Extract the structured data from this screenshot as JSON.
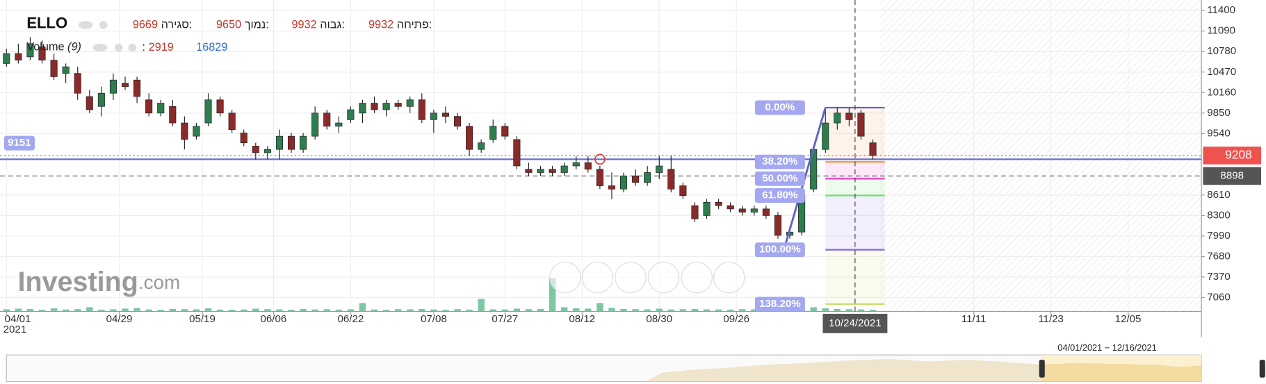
{
  "chart_data": {
    "type": "candlestick",
    "symbol": "ELLO",
    "legend_items": [
      {
        "label": "פתיחה:",
        "value": 9932
      },
      {
        "label": "גבוה:",
        "value": 9932
      },
      {
        "label": "נמוך:",
        "value": 9650
      },
      {
        "label": "סגירה:",
        "value": 9669
      }
    ],
    "volume_label": "Volume",
    "volume_period": "(9)",
    "volume_separator": ":",
    "volume_value": 2919,
    "volume_ma": 16829,
    "watermark": "Investing",
    "watermark_suffix": ".com",
    "xlim": [
      0,
      200
    ],
    "xticks": [
      {
        "value": 0,
        "label": "04/01"
      },
      {
        "value": 19,
        "label": "04/29"
      },
      {
        "value": 33,
        "label": "05/19"
      },
      {
        "value": 45,
        "label": "06/06"
      },
      {
        "value": 58,
        "label": "06/22"
      },
      {
        "value": 72,
        "label": "07/08"
      },
      {
        "value": 84,
        "label": "07/27"
      },
      {
        "value": 97,
        "label": "08/12"
      },
      {
        "value": 110,
        "label": "08/30"
      },
      {
        "value": 123,
        "label": "09/26"
      },
      {
        "value": 163,
        "label": "11/11"
      },
      {
        "value": 176,
        "label": "11/23"
      },
      {
        "value": 189,
        "label": "12/05"
      }
    ],
    "x_year": "2021",
    "ylim": [
      6850,
      11560
    ],
    "yticks": [
      11400,
      11090,
      10780,
      10470,
      10160,
      9850,
      9540,
      8610,
      8300,
      7990,
      7680,
      7370,
      7060
    ],
    "grid": true,
    "up_color": "#2e7d4f",
    "down_color": "#8b2a2a",
    "x": [
      0,
      2,
      4,
      6,
      8,
      10,
      12,
      14,
      16,
      18,
      20,
      22,
      24,
      26,
      28,
      30,
      32,
      34,
      36,
      38,
      40,
      42,
      44,
      46,
      48,
      50,
      52,
      54,
      56,
      58,
      60,
      62,
      64,
      66,
      68,
      70,
      72,
      74,
      76,
      78,
      80,
      82,
      84,
      86,
      88,
      90,
      92,
      94,
      96,
      98,
      100,
      102,
      104,
      106,
      108,
      110,
      112,
      114,
      116,
      118,
      120,
      122,
      124,
      126,
      128,
      130,
      132,
      134,
      136,
      138,
      140,
      142,
      144,
      146
    ],
    "ohlc": [
      [
        10600,
        10820,
        10550,
        10750
      ],
      [
        10750,
        10900,
        10600,
        10650
      ],
      [
        10700,
        11000,
        10650,
        10900
      ],
      [
        10850,
        10950,
        10600,
        10650
      ],
      [
        10650,
        10750,
        10350,
        10400
      ],
      [
        10450,
        10600,
        10300,
        10550
      ],
      [
        10450,
        10550,
        10050,
        10150
      ],
      [
        10100,
        10200,
        9850,
        9900
      ],
      [
        9950,
        10250,
        9800,
        10150
      ],
      [
        10150,
        10450,
        10050,
        10350
      ],
      [
        10300,
        10400,
        10200,
        10250
      ],
      [
        10350,
        10400,
        10000,
        10100
      ],
      [
        10050,
        10150,
        9800,
        9850
      ],
      [
        9850,
        10050,
        9800,
        10000
      ],
      [
        9950,
        10050,
        9650,
        9700
      ],
      [
        9700,
        9800,
        9300,
        9450
      ],
      [
        9500,
        9700,
        9450,
        9650
      ],
      [
        9700,
        10150,
        9650,
        10050
      ],
      [
        10050,
        10100,
        9800,
        9850
      ],
      [
        9850,
        9900,
        9550,
        9600
      ],
      [
        9550,
        9600,
        9350,
        9400
      ],
      [
        9350,
        9400,
        9150,
        9250
      ],
      [
        9250,
        9350,
        9150,
        9300
      ],
      [
        9300,
        9600,
        9150,
        9500
      ],
      [
        9500,
        9550,
        9250,
        9300
      ],
      [
        9300,
        9550,
        9250,
        9500
      ],
      [
        9500,
        9950,
        9450,
        9850
      ],
      [
        9850,
        9900,
        9600,
        9650
      ],
      [
        9650,
        9800,
        9550,
        9700
      ],
      [
        9750,
        9950,
        9700,
        9900
      ],
      [
        9850,
        10050,
        9700,
        10000
      ],
      [
        10000,
        10100,
        9850,
        9900
      ],
      [
        9900,
        10050,
        9800,
        10000
      ],
      [
        10000,
        10050,
        9900,
        9950
      ],
      [
        9950,
        10100,
        9850,
        10050
      ],
      [
        10050,
        10150,
        9700,
        9750
      ],
      [
        9750,
        9900,
        9550,
        9850
      ],
      [
        9850,
        9950,
        9700,
        9800
      ],
      [
        9800,
        9850,
        9600,
        9650
      ],
      [
        9650,
        9700,
        9200,
        9300
      ],
      [
        9300,
        9450,
        9250,
        9400
      ],
      [
        9450,
        9750,
        9400,
        9650
      ],
      [
        9650,
        9700,
        9450,
        9500
      ],
      [
        9450,
        9500,
        9000,
        9050
      ],
      [
        9000,
        9100,
        8900,
        8950
      ],
      [
        8950,
        9050,
        8900,
        9000
      ],
      [
        9000,
        9050,
        8900,
        8950
      ],
      [
        8950,
        9100,
        8900,
        9050
      ],
      [
        9050,
        9200,
        9000,
        9100
      ],
      [
        9100,
        9200,
        8950,
        9000
      ],
      [
        9000,
        9050,
        8700,
        8750
      ],
      [
        8750,
        8950,
        8550,
        8700
      ],
      [
        8700,
        8950,
        8650,
        8900
      ],
      [
        8900,
        9000,
        8750,
        8800
      ],
      [
        8800,
        9050,
        8750,
        8950
      ],
      [
        8950,
        9200,
        8850,
        9050
      ],
      [
        9000,
        9200,
        8650,
        8700
      ],
      [
        8750,
        8800,
        8550,
        8600
      ],
      [
        8450,
        8500,
        8200,
        8250
      ],
      [
        8300,
        8550,
        8250,
        8500
      ],
      [
        8500,
        8550,
        8400,
        8450
      ],
      [
        8450,
        8500,
        8350,
        8400
      ],
      [
        8400,
        8450,
        8300,
        8350
      ],
      [
        8350,
        8450,
        8300,
        8400
      ],
      [
        8400,
        8450,
        8250,
        8300
      ],
      [
        8300,
        8350,
        7950,
        8000
      ],
      [
        8000,
        8100,
        7950,
        8050
      ],
      [
        8050,
        8700,
        8000,
        8600
      ],
      [
        8700,
        9350,
        8650,
        9300
      ],
      [
        9300,
        9900,
        9250,
        9700
      ],
      [
        9700,
        9932,
        9600,
        9850
      ],
      [
        9850,
        9932,
        9650,
        9750
      ],
      [
        9850,
        9900,
        9450,
        9500
      ],
      [
        9400,
        9450,
        9150,
        9208
      ]
    ],
    "volume": [
      15000,
      20000,
      18000,
      12000,
      22000,
      14000,
      16000,
      30000,
      12000,
      15000,
      20000,
      25000,
      14000,
      12000,
      18000,
      16000,
      15000,
      22000,
      13000,
      12000,
      14000,
      20000,
      16000,
      15000,
      12000,
      18000,
      14000,
      16000,
      13000,
      15000,
      60000,
      14000,
      12000,
      16000,
      15000,
      18000,
      14000,
      12000,
      16000,
      13000,
      90000,
      15000,
      14000,
      20000,
      16000,
      18000,
      240000,
      30000,
      22000,
      20000,
      60000,
      25000,
      18000,
      16000,
      15000,
      20000,
      14000,
      16000,
      18000,
      15000,
      14000,
      13000,
      16000,
      15000,
      14000,
      18000,
      20000,
      25000,
      30000,
      22000,
      18000,
      16000,
      14000,
      12000
    ],
    "volume_ylim": [
      0,
      500000
    ],
    "volume_color": "#7cc7a4",
    "fib": {
      "high": 9932,
      "low": 7782,
      "x": [
        138,
        148
      ],
      "levels": [
        {
          "value": 0,
          "label": "0.00%",
          "color": "#5b63c7"
        },
        {
          "value": 38.2,
          "label": "38.20%",
          "color": "#f0a050"
        },
        {
          "value": 50,
          "label": "50.00%",
          "color": "#e040c8"
        },
        {
          "value": 61.8,
          "label": "61.80%",
          "color": "#6fe06f"
        },
        {
          "value": 100,
          "label": "100.00%",
          "color": "#9070e0"
        },
        {
          "value": 138.2,
          "label": "138.20%",
          "color": "#c8e070"
        }
      ]
    },
    "trendline": {
      "x": [
        131,
        138
      ],
      "y": [
        7782,
        9932
      ],
      "color": "#5b63c7"
    },
    "hline": {
      "value": 9151,
      "color": "#6a6fd1",
      "marker_x": 100
    },
    "last_price": {
      "value": 9208,
      "color": "#ef5350"
    },
    "cursor_price": {
      "value": 8898,
      "color": "#555555"
    },
    "crosshair": {
      "x": 143,
      "label": "10/24/2021"
    },
    "range_label": "04/01/2021 − 12/16/2021"
  }
}
